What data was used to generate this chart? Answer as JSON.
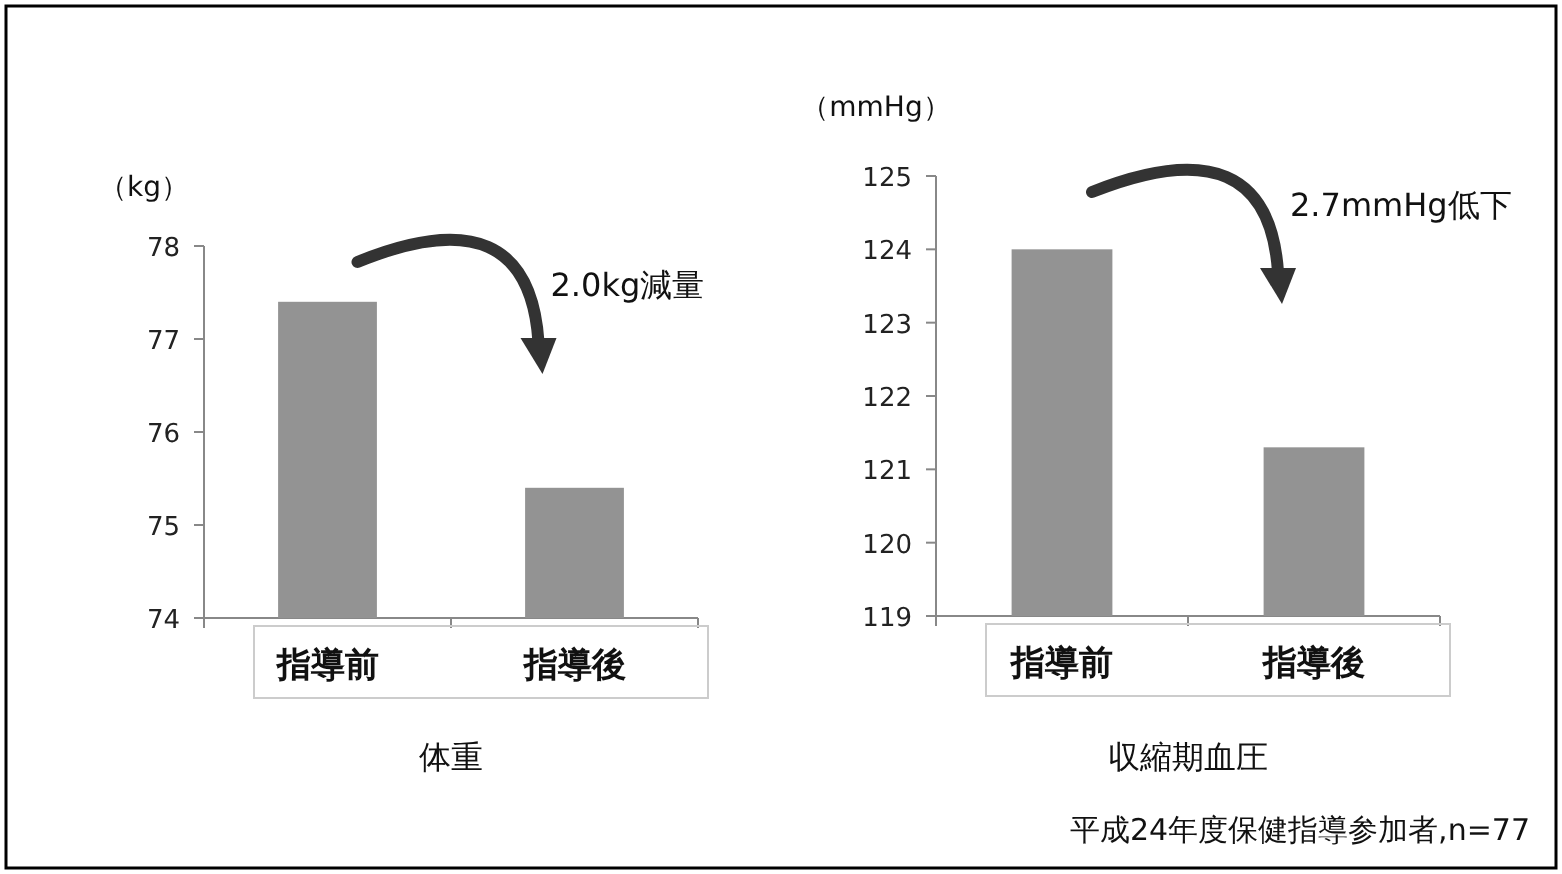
{
  "chart_data": [
    {
      "type": "bar",
      "categories": [
        "指導前",
        "指導後"
      ],
      "values": [
        77.4,
        75.4
      ],
      "color": "#939393",
      "ylim": [
        74,
        78
      ],
      "yticks": [
        74,
        75,
        76,
        77,
        78
      ],
      "ylabel": "（kg）",
      "xlabel": "体重",
      "annotations": [
        "2.0kg減量"
      ]
    },
    {
      "type": "bar",
      "categories": [
        "指導前",
        "指導後"
      ],
      "values": [
        124.0,
        121.3
      ],
      "color": "#939393",
      "ylim": [
        119,
        125
      ],
      "yticks": [
        119,
        120,
        121,
        122,
        123,
        124,
        125
      ],
      "ylabel": "（mmHg）",
      "xlabel": "収縮期血圧",
      "annotations": [
        "2.7mmHg低下",
        "平成24年度保健指導参加者,n=77"
      ]
    }
  ]
}
